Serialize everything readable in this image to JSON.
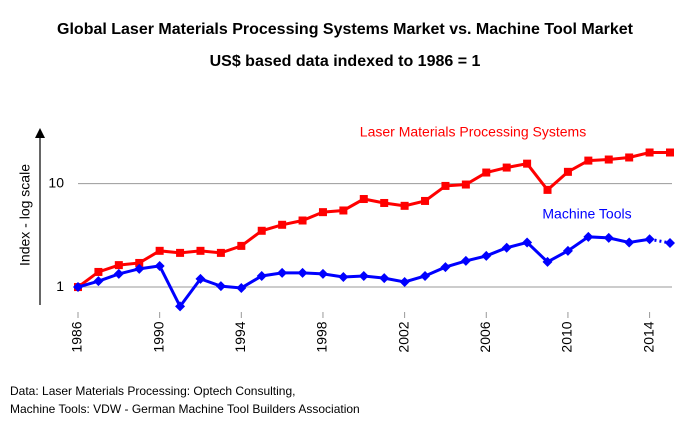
{
  "chart_data": {
    "type": "line",
    "title": "Global Laser Materials Processing Systems Market vs. Machine Tool Market",
    "subtitle": "US$ based data indexed to 1986 = 1",
    "y_label": "Index - log scale",
    "x": [
      1986,
      1987,
      1988,
      1989,
      1990,
      1991,
      1992,
      1993,
      1994,
      1995,
      1996,
      1997,
      1998,
      1999,
      2000,
      2001,
      2002,
      2003,
      2004,
      2005,
      2006,
      2007,
      2008,
      2009,
      2010,
      2011,
      2012,
      2013,
      2014,
      2015
    ],
    "series": [
      {
        "name": "Laser Materials Processing Systems",
        "color": "#ff0000",
        "marker": "square",
        "values": [
          1,
          1.4,
          1.63,
          1.71,
          2.24,
          2.14,
          2.24,
          2.14,
          2.5,
          3.5,
          4.0,
          4.4,
          5.3,
          5.5,
          7.1,
          6.5,
          6.1,
          6.8,
          9.5,
          9.8,
          12.8,
          14.3,
          15.6,
          8.7,
          13,
          16.7,
          17.1,
          17.9,
          20,
          20
        ]
      },
      {
        "name": "Machine Tools",
        "color": "#0000ff",
        "marker": "diamond",
        "last_segment_style": "dotted",
        "values": [
          1,
          1.14,
          1.34,
          1.5,
          1.6,
          0.65,
          1.2,
          1.02,
          0.98,
          1.28,
          1.37,
          1.37,
          1.34,
          1.25,
          1.28,
          1.22,
          1.12,
          1.28,
          1.56,
          1.79,
          2.0,
          2.4,
          2.7,
          1.75,
          2.24,
          3.06,
          2.99,
          2.7,
          2.9,
          2.67
        ]
      }
    ],
    "log_scale": true,
    "ylim": [
      0.6,
      33
    ],
    "yticks": [
      1,
      10
    ],
    "xlim": [
      1986,
      2015
    ],
    "xticks": [
      1986,
      1990,
      1994,
      1998,
      2002,
      2006,
      2010,
      2014
    ],
    "grid": true,
    "source": [
      "Data: Laser Materials Processing: Optech Consulting,",
      "Machine Tools: VDW - German Machine Tool Builders Association"
    ]
  }
}
